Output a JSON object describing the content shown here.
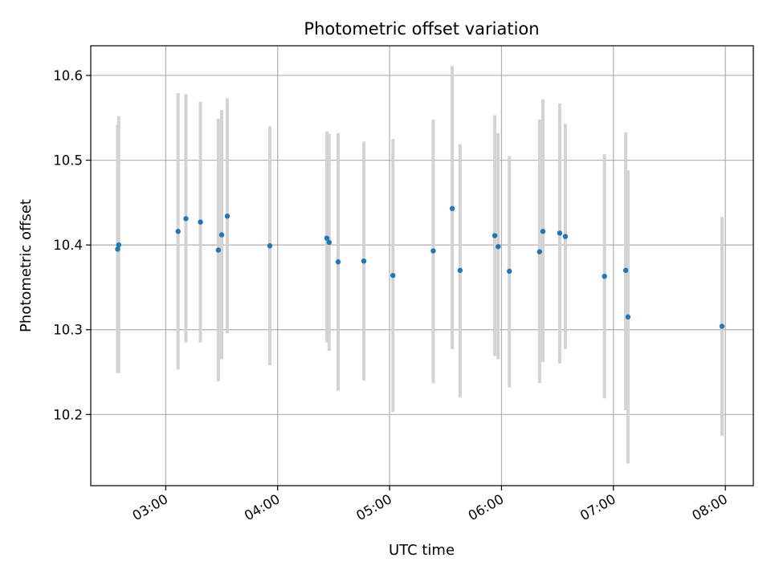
{
  "chart_data": {
    "type": "scatter",
    "title": "Photometric offset variation",
    "xlabel": "UTC time",
    "ylabel": "Photometric offset",
    "x_unit": "hours UTC",
    "xlim": [
      2.33,
      8.25
    ],
    "ylim": [
      10.116,
      10.635
    ],
    "x_ticks": [
      {
        "value": 3,
        "label": "03:00"
      },
      {
        "value": 4,
        "label": "04:00"
      },
      {
        "value": 5,
        "label": "05:00"
      },
      {
        "value": 6,
        "label": "06:00"
      },
      {
        "value": 7,
        "label": "07:00"
      },
      {
        "value": 8,
        "label": "08:00"
      }
    ],
    "y_ticks": [
      {
        "value": 10.2,
        "label": "10.2"
      },
      {
        "value": 10.3,
        "label": "10.3"
      },
      {
        "value": 10.4,
        "label": "10.4"
      },
      {
        "value": 10.5,
        "label": "10.5"
      },
      {
        "value": 10.6,
        "label": "10.6"
      }
    ],
    "grid": true,
    "marker_color": "#1f77b4",
    "errorbar_color": "#d3d3d3",
    "points": [
      {
        "x": 2.57,
        "y": 10.395,
        "y_low": 10.249,
        "y_high": 10.542
      },
      {
        "x": 2.58,
        "y": 10.4,
        "y_low": 10.249,
        "y_high": 10.552
      },
      {
        "x": 3.11,
        "y": 10.416,
        "y_low": 10.253,
        "y_high": 10.579
      },
      {
        "x": 3.18,
        "y": 10.431,
        "y_low": 10.285,
        "y_high": 10.578
      },
      {
        "x": 3.31,
        "y": 10.427,
        "y_low": 10.285,
        "y_high": 10.569
      },
      {
        "x": 3.47,
        "y": 10.394,
        "y_low": 10.239,
        "y_high": 10.549
      },
      {
        "x": 3.5,
        "y": 10.412,
        "y_low": 10.265,
        "y_high": 10.559
      },
      {
        "x": 3.55,
        "y": 10.434,
        "y_low": 10.296,
        "y_high": 10.573
      },
      {
        "x": 3.93,
        "y": 10.399,
        "y_low": 10.258,
        "y_high": 10.54
      },
      {
        "x": 4.44,
        "y": 10.408,
        "y_low": 10.285,
        "y_high": 10.534
      },
      {
        "x": 4.46,
        "y": 10.403,
        "y_low": 10.275,
        "y_high": 10.531
      },
      {
        "x": 4.54,
        "y": 10.38,
        "y_low": 10.228,
        "y_high": 10.532
      },
      {
        "x": 4.77,
        "y": 10.381,
        "y_low": 10.24,
        "y_high": 10.522
      },
      {
        "x": 5.03,
        "y": 10.364,
        "y_low": 10.203,
        "y_high": 10.525
      },
      {
        "x": 5.39,
        "y": 10.393,
        "y_low": 10.237,
        "y_high": 10.548
      },
      {
        "x": 5.56,
        "y": 10.443,
        "y_low": 10.277,
        "y_high": 10.611
      },
      {
        "x": 5.63,
        "y": 10.37,
        "y_low": 10.22,
        "y_high": 10.519
      },
      {
        "x": 5.94,
        "y": 10.411,
        "y_low": 10.269,
        "y_high": 10.553
      },
      {
        "x": 5.97,
        "y": 10.398,
        "y_low": 10.265,
        "y_high": 10.532
      },
      {
        "x": 6.07,
        "y": 10.369,
        "y_low": 10.232,
        "y_high": 10.505
      },
      {
        "x": 6.34,
        "y": 10.392,
        "y_low": 10.237,
        "y_high": 10.548
      },
      {
        "x": 6.37,
        "y": 10.416,
        "y_low": 10.262,
        "y_high": 10.572
      },
      {
        "x": 6.52,
        "y": 10.414,
        "y_low": 10.26,
        "y_high": 10.567
      },
      {
        "x": 6.57,
        "y": 10.41,
        "y_low": 10.277,
        "y_high": 10.543
      },
      {
        "x": 6.92,
        "y": 10.363,
        "y_low": 10.219,
        "y_high": 10.507
      },
      {
        "x": 7.11,
        "y": 10.37,
        "y_low": 10.205,
        "y_high": 10.533
      },
      {
        "x": 7.13,
        "y": 10.315,
        "y_low": 10.142,
        "y_high": 10.488
      },
      {
        "x": 7.97,
        "y": 10.304,
        "y_low": 10.175,
        "y_high": 10.433
      }
    ]
  }
}
